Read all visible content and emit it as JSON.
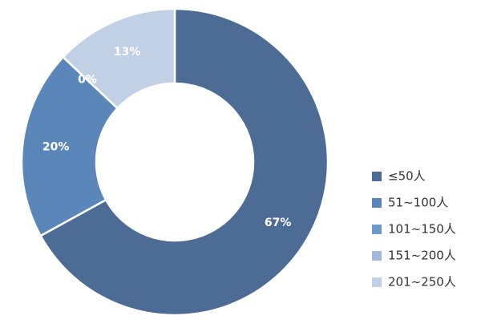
{
  "chart_data": {
    "type": "donut",
    "categories": [
      "≤50人",
      "51~100人",
      "101~150人",
      "151~200人",
      "201~250人"
    ],
    "values": [
      67,
      20,
      0,
      0,
      13
    ],
    "value_labels": [
      "67%",
      "20%",
      "0%",
      "0%",
      "13%"
    ],
    "colors": [
      "#4d6c95",
      "#5b86ba",
      "#6c97c9",
      "#a3b9d8",
      "#c2d0e6"
    ],
    "legend": "right"
  }
}
